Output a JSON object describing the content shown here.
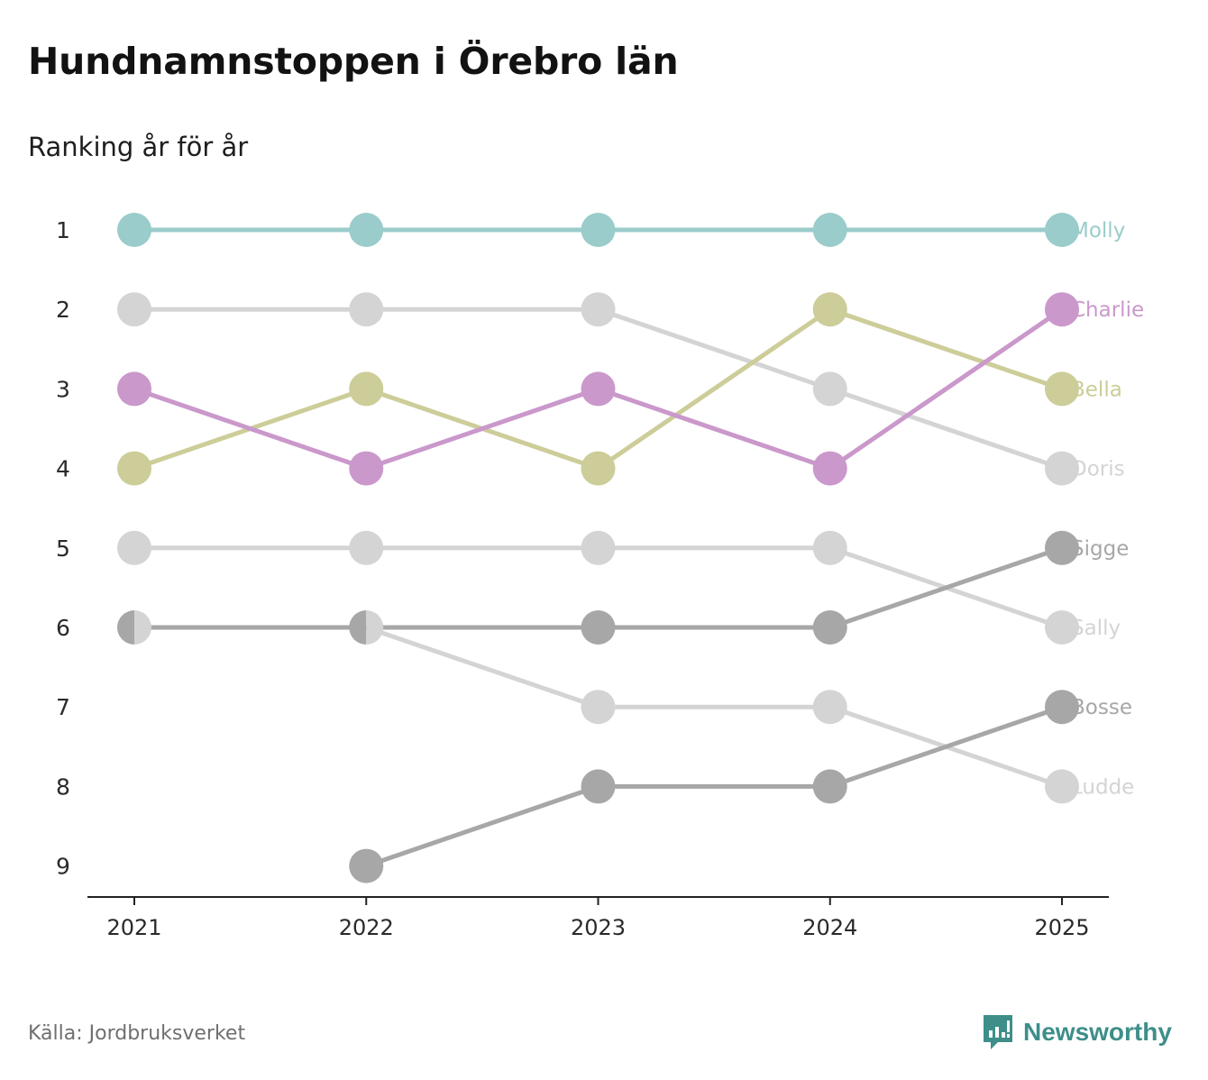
{
  "title": "Hundnamnstoppen i Örebro län",
  "subtitle": "Ranking år för år",
  "source": "Källa: Jordbruksverket",
  "brand": {
    "name": "Newsworthy",
    "icon": "newsworthy-logo-icon",
    "color": "#3e8e8a"
  },
  "chart_data": {
    "type": "line",
    "title": "Hundnamnstoppen i Örebro län",
    "subtitle": "Ranking år för år",
    "xlabel": "",
    "ylabel": "",
    "x": [
      "2021",
      "2022",
      "2023",
      "2024",
      "2025"
    ],
    "y_ticks": [
      "1",
      "2",
      "3",
      "4",
      "5",
      "6",
      "7",
      "8",
      "9"
    ],
    "ylim": [
      1,
      9
    ],
    "y_inverted": true,
    "legend": "end-labels-right",
    "series": [
      {
        "name": "Molly",
        "color": "#9acccb",
        "values": [
          1,
          1,
          1,
          1,
          1
        ]
      },
      {
        "name": "Doris",
        "color": "#d4d4d4",
        "values": [
          2,
          2,
          2,
          3,
          4
        ]
      },
      {
        "name": "Sally",
        "color": "#d4d4d4",
        "values": [
          5,
          5,
          5,
          5,
          6
        ]
      },
      {
        "name": "Ludde",
        "color": "#d4d4d4",
        "values": [
          6,
          6,
          7,
          7,
          8
        ]
      },
      {
        "name": "Sigge",
        "color": "#a7a7a7",
        "values": [
          6,
          6,
          6,
          6,
          5
        ]
      },
      {
        "name": "Bosse",
        "color": "#a7a7a7",
        "values": [
          null,
          9,
          8,
          8,
          7
        ]
      },
      {
        "name": "Bella",
        "color": "#cccd98",
        "values": [
          4,
          3,
          4,
          2,
          3
        ]
      },
      {
        "name": "Charlie",
        "color": "#ca98cb",
        "values": [
          3,
          4,
          3,
          4,
          2
        ]
      }
    ]
  }
}
